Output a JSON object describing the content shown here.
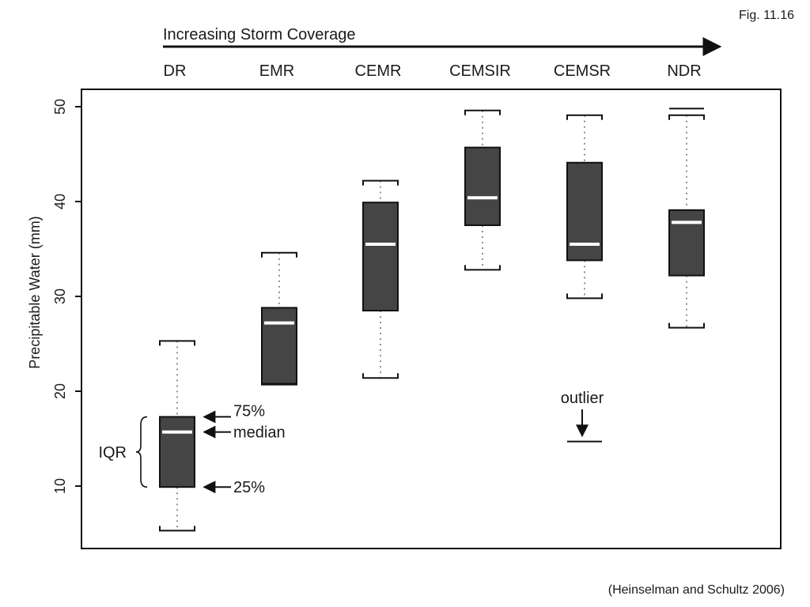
{
  "figure_label": "Fig. 11.16",
  "credit": "(Heinselman and Schultz 2006)",
  "chart_data": {
    "type": "box",
    "top_arrow_label": "Increasing Storm Coverage",
    "categories": [
      "DR",
      "EMR",
      "CEMR",
      "CEMSIR",
      "CEMSR",
      "NDR"
    ],
    "ylabel": "Precipitable Water (mm)",
    "ylim": [
      3.5,
      51.5
    ],
    "yticks": [
      10,
      20,
      30,
      40,
      50
    ],
    "grid": false,
    "boxes": [
      {
        "category": "DR",
        "whisker_low": 5.3,
        "q1": 9.9,
        "median": 15.7,
        "q3": 17.3,
        "whisker_high": 25.3
      },
      {
        "category": "EMR",
        "whisker_low": 20.7,
        "q1": 20.8,
        "median": 27.2,
        "q3": 28.8,
        "whisker_high": 34.6
      },
      {
        "category": "CEMR",
        "whisker_low": 21.4,
        "q1": 28.5,
        "median": 35.5,
        "q3": 39.9,
        "whisker_high": 42.2
      },
      {
        "category": "CEMSIR",
        "whisker_low": 32.8,
        "q1": 37.5,
        "median": 40.4,
        "q3": 45.7,
        "whisker_high": 49.6
      },
      {
        "category": "CEMSR",
        "whisker_low": 29.8,
        "q1": 33.8,
        "median": 35.5,
        "q3": 44.1,
        "whisker_high": 49.1,
        "outliers": [
          14.7
        ]
      },
      {
        "category": "NDR",
        "whisker_low": 26.7,
        "q1": 32.2,
        "median": 37.8,
        "q3": 39.1,
        "whisker_high": 49.1,
        "outliers": [
          49.8
        ]
      }
    ],
    "colors": {
      "box": "#454545",
      "median": "#ffffff",
      "whisker": "#909090",
      "frame": "#111111"
    },
    "annotations": {
      "q3": "75%",
      "median": "median",
      "q1": "25%",
      "iqr": "IQR",
      "outlier": "outlier"
    }
  }
}
